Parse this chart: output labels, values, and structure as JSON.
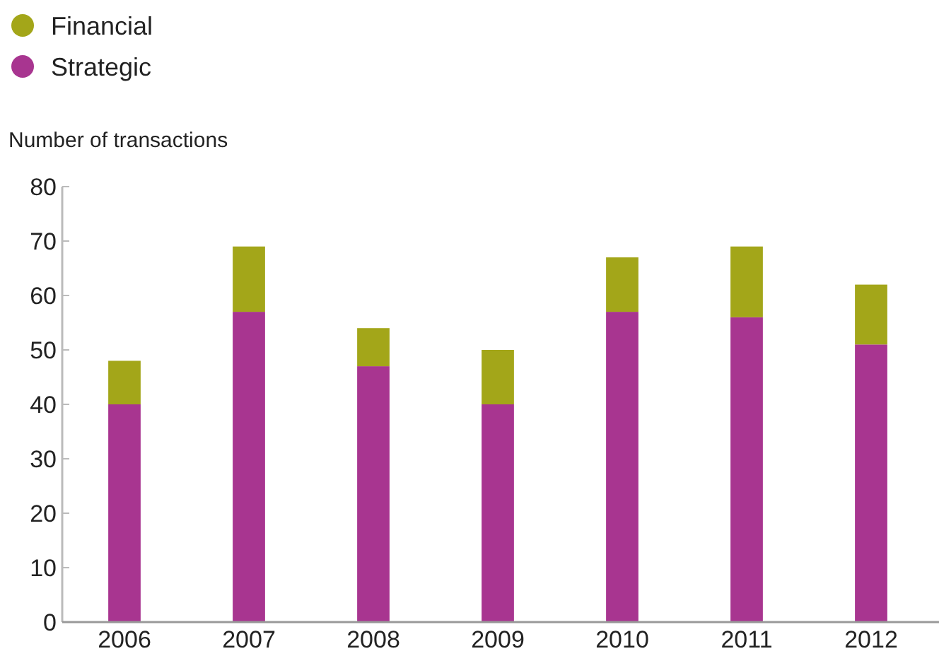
{
  "chart_data": {
    "type": "bar",
    "ylabel": "Number of transactions",
    "stacked": true,
    "legend": "top left",
    "categories": [
      "2006",
      "2007",
      "2008",
      "2009",
      "2010",
      "2011",
      "2012"
    ],
    "series": [
      {
        "name": "Strategic",
        "color": "#a83590",
        "values": [
          40,
          57,
          47,
          40,
          57,
          56,
          51
        ]
      },
      {
        "name": "Financial",
        "color": "#a3a619",
        "values": [
          8,
          12,
          7,
          10,
          10,
          13,
          11
        ]
      }
    ],
    "ylim": [
      0,
      80
    ],
    "yticks": [
      0,
      10,
      20,
      30,
      40,
      50,
      60,
      70,
      80
    ]
  }
}
